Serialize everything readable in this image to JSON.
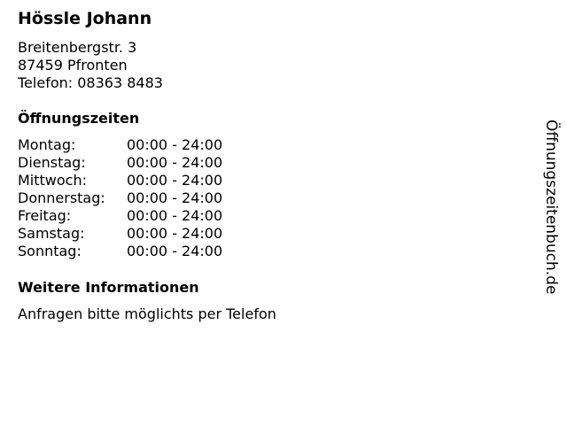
{
  "name": "Hössle Johann",
  "address": {
    "street": "Breitenbergstr. 3",
    "city": "87459 Pfronten",
    "phone": "Telefon: 08363 8483"
  },
  "hours_title": "Öffnungszeiten",
  "hours": [
    {
      "day": "Montag:",
      "time": "00:00 - 24:00"
    },
    {
      "day": "Dienstag:",
      "time": "00:00 - 24:00"
    },
    {
      "day": "Mittwoch:",
      "time": "00:00 - 24:00"
    },
    {
      "day": "Donnerstag:",
      "time": "00:00 - 24:00"
    },
    {
      "day": "Freitag:",
      "time": "00:00 - 24:00"
    },
    {
      "day": "Samstag:",
      "time": "00:00 - 24:00"
    },
    {
      "day": "Sonntag:",
      "time": "00:00 - 24:00"
    }
  ],
  "info_title": "Weitere Informationen",
  "info_text": "Anfragen bitte möglichts per Telefon",
  "watermark": "Öffnungszeitenbuch.de"
}
